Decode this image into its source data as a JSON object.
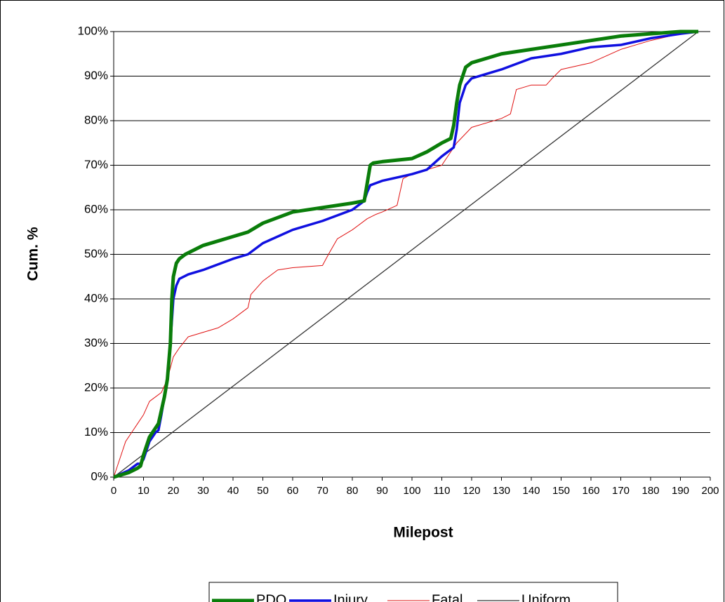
{
  "chart_data": {
    "type": "line",
    "x_label": "Milepost",
    "y_label": "Cum. %",
    "xlim": [
      0,
      200
    ],
    "ylim": [
      0,
      100
    ],
    "xticks": [
      0,
      10,
      20,
      30,
      40,
      50,
      60,
      70,
      80,
      90,
      100,
      110,
      120,
      130,
      140,
      150,
      160,
      170,
      180,
      190,
      200
    ],
    "yticks": [
      {
        "value": 0,
        "label": "0%"
      },
      {
        "value": 10,
        "label": "10%"
      },
      {
        "value": 20,
        "label": "20%"
      },
      {
        "value": 30,
        "label": "30%"
      },
      {
        "value": 40,
        "label": "40%"
      },
      {
        "value": 50,
        "label": "50%"
      },
      {
        "value": 60,
        "label": "60%"
      },
      {
        "value": 70,
        "label": "70%"
      },
      {
        "value": 80,
        "label": "80%"
      },
      {
        "value": 90,
        "label": "90%"
      },
      {
        "value": 100,
        "label": "100%"
      }
    ],
    "grid": true,
    "legend": "bottom",
    "series": [
      {
        "name": "PDO",
        "color": "#0a7d0a",
        "width": 5,
        "x": [
          0,
          5,
          8,
          9,
          10,
          12,
          14,
          15,
          16,
          17,
          18,
          19,
          19.5,
          20,
          21,
          22,
          24,
          30,
          40,
          45,
          50,
          60,
          70,
          80,
          84,
          85,
          86,
          87,
          90,
          100,
          105,
          110,
          113,
          114,
          115,
          116,
          117,
          118,
          120,
          125,
          130,
          140,
          150,
          160,
          170,
          180,
          190,
          196
        ],
        "values": [
          0,
          1,
          2,
          2.5,
          5,
          9,
          11,
          12,
          15,
          18,
          22,
          30,
          40,
          45,
          48,
          49,
          50,
          52,
          54,
          55,
          57,
          59.5,
          60.5,
          61.5,
          62,
          66,
          70,
          70.5,
          70.8,
          71.5,
          73,
          75,
          76,
          79,
          84,
          88,
          90,
          92,
          93,
          94,
          95,
          96,
          97,
          98,
          99,
          99.5,
          100,
          100
        ]
      },
      {
        "name": "Injury",
        "color": "#1010e0",
        "width": 3.5,
        "x": [
          0,
          5,
          8,
          9,
          10,
          12,
          14,
          15,
          16,
          17,
          18,
          19,
          20,
          21,
          22,
          25,
          30,
          40,
          45,
          50,
          60,
          70,
          80,
          84,
          85,
          86,
          88,
          90,
          100,
          105,
          110,
          113,
          114,
          115,
          116,
          117,
          118,
          120,
          130,
          140,
          150,
          160,
          170,
          180,
          190,
          196
        ],
        "values": [
          0,
          1.5,
          3,
          3,
          4,
          8,
          10,
          10.5,
          14,
          18,
          22,
          30,
          40,
          43,
          44.5,
          45.5,
          46.5,
          49,
          50,
          52.5,
          55.5,
          57.5,
          60,
          62,
          64,
          65.5,
          66,
          66.5,
          68,
          69,
          72,
          73.5,
          74,
          78,
          84,
          86,
          88,
          89.5,
          91.5,
          94,
          95,
          96.5,
          97,
          98.5,
          99.5,
          100
        ]
      },
      {
        "name": "Fatal",
        "color": "#e01010",
        "width": 1,
        "x": [
          0,
          2,
          4,
          6,
          8,
          10,
          12,
          14,
          16,
          18,
          20,
          22,
          25,
          30,
          35,
          40,
          45,
          46,
          50,
          55,
          60,
          70,
          72,
          75,
          80,
          85,
          88,
          90,
          95,
          97,
          100,
          105,
          110,
          115,
          120,
          130,
          133,
          135,
          140,
          145,
          147,
          150,
          160,
          170,
          175,
          180,
          190,
          196
        ],
        "values": [
          0,
          4,
          8,
          10,
          12,
          14,
          17,
          18,
          19,
          22,
          27,
          29,
          31.5,
          32.5,
          33.5,
          35.5,
          38,
          41,
          44,
          46.5,
          47,
          47.5,
          50,
          53.5,
          55.5,
          58,
          59,
          59.5,
          61,
          67,
          68,
          69,
          70,
          75,
          78.5,
          80.5,
          81.5,
          87,
          88,
          88,
          89.5,
          91.5,
          93,
          96,
          97,
          98,
          99.5,
          100
        ]
      },
      {
        "name": "Uniform",
        "color": "#333333",
        "width": 1.3,
        "x": [
          0,
          196
        ],
        "values": [
          0,
          100
        ]
      }
    ]
  }
}
